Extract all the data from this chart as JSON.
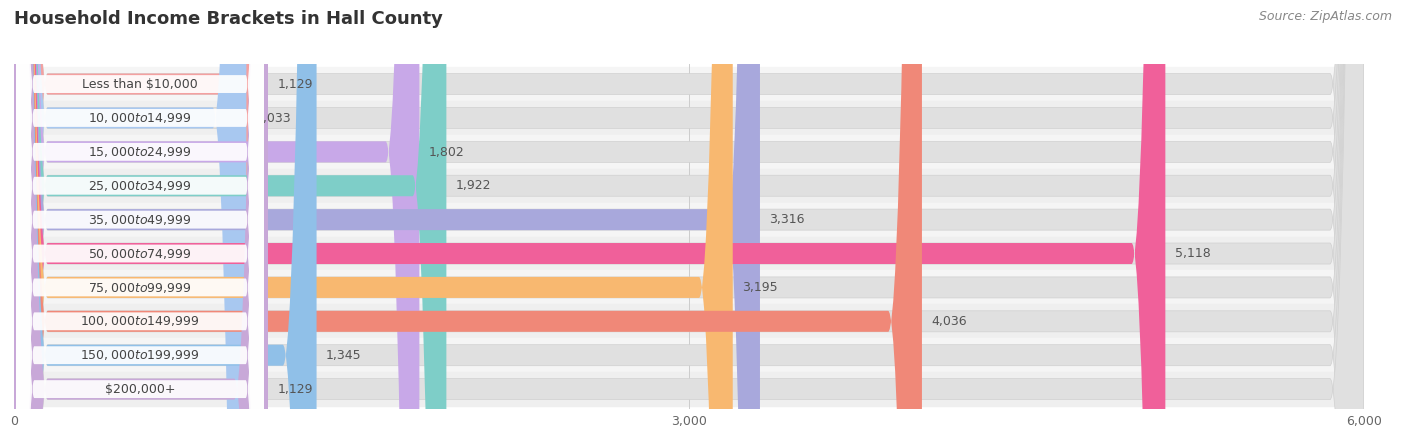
{
  "title": "Household Income Brackets in Hall County",
  "source": "Source: ZipAtlas.com",
  "categories": [
    "Less than $10,000",
    "$10,000 to $14,999",
    "$15,000 to $24,999",
    "$25,000 to $34,999",
    "$35,000 to $49,999",
    "$50,000 to $74,999",
    "$75,000 to $99,999",
    "$100,000 to $149,999",
    "$150,000 to $199,999",
    "$200,000+"
  ],
  "values": [
    1129,
    1033,
    1802,
    1922,
    3316,
    5118,
    3195,
    4036,
    1345,
    1129
  ],
  "bar_colors": [
    "#F4A0A0",
    "#A8C8F0",
    "#C8A8E8",
    "#7ECEC8",
    "#A8A8DC",
    "#F0609A",
    "#F8B870",
    "#F08878",
    "#90C0E8",
    "#C8A8D8"
  ],
  "track_color": "#e8e8e8",
  "xlim": [
    0,
    6000
  ],
  "xticks": [
    0,
    3000,
    6000
  ],
  "title_fontsize": 13,
  "label_fontsize": 9,
  "value_fontsize": 9,
  "source_fontsize": 9
}
